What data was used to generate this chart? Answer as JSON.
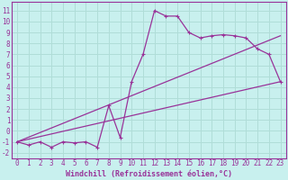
{
  "bg_color": "#c8f0ee",
  "grid_color": "#b0ddd8",
  "line_color": "#993399",
  "xlabel": "Windchill (Refroidissement éolien,°C)",
  "xlabel_fontsize": 6.0,
  "ylabel_ticks": [
    -2,
    -1,
    0,
    1,
    2,
    3,
    4,
    5,
    6,
    7,
    8,
    9,
    10,
    11
  ],
  "xlabel_ticks": [
    0,
    1,
    2,
    3,
    4,
    5,
    6,
    7,
    8,
    9,
    10,
    11,
    12,
    13,
    14,
    15,
    16,
    17,
    18,
    19,
    20,
    21,
    22,
    23
  ],
  "ylim": [
    -2.5,
    11.8
  ],
  "xlim": [
    -0.5,
    23.5
  ],
  "series1_x": [
    0,
    1,
    2,
    3,
    4,
    5,
    6,
    7,
    8,
    9,
    10,
    11,
    12,
    13,
    14,
    15,
    16,
    17,
    18,
    19,
    20,
    21,
    22,
    23
  ],
  "series1_y": [
    -1.0,
    -1.3,
    -1.0,
    -1.5,
    -1.0,
    -1.1,
    -1.0,
    -1.5,
    2.3,
    -0.6,
    4.5,
    7.0,
    11.0,
    10.5,
    10.5,
    9.0,
    8.5,
    8.7,
    8.8,
    8.7,
    8.5,
    7.5,
    7.0,
    4.5
  ],
  "series2_x": [
    0,
    23
  ],
  "series2_y": [
    -1.0,
    4.5
  ],
  "series3_x": [
    0,
    23
  ],
  "series3_y": [
    -1.0,
    8.7
  ],
  "tick_fontsize": 5.5
}
